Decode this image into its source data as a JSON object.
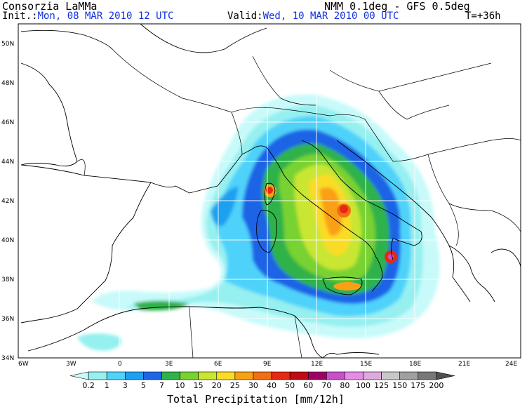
{
  "header": {
    "org": "Consorzia LaMMa",
    "model": "NMM 0.1deg - GFS 0.5deg",
    "init_label": "Init.:",
    "init_value": "Mon, 08 MAR 2010 12 UTC",
    "valid_label": "Valid:",
    "valid_value": "Wed, 10 MAR 2010 00 UTC",
    "forecast_step": "T=+36h"
  },
  "map": {
    "lat_labels": [
      "34N",
      "36N",
      "38N",
      "40N",
      "42N",
      "44N",
      "46N",
      "48N",
      "50N"
    ],
    "lon_labels": [
      "6W",
      "3W",
      "0",
      "3E",
      "6E",
      "9E",
      "12E",
      "15E",
      "18E",
      "21E",
      "24E"
    ]
  },
  "colorbar": {
    "title": "Total Precipitation [mm/12h]",
    "ticks": [
      "0.2",
      "1",
      "3",
      "5",
      "7",
      "10",
      "15",
      "20",
      "25",
      "30",
      "40",
      "50",
      "60",
      "70",
      "80",
      "100",
      "125",
      "150",
      "175",
      "200"
    ],
    "colors": [
      "#c8fafa",
      "#96f0f0",
      "#50d2fa",
      "#1ea0f0",
      "#1e64e6",
      "#2fb24a",
      "#78d232",
      "#c8e632",
      "#fadc28",
      "#faa014",
      "#f06e14",
      "#e62814",
      "#c00a14",
      "#a00064",
      "#c850c8",
      "#e68ce6",
      "#dcaadc",
      "#c8c8c8",
      "#a0a0a0",
      "#787878",
      "#505050"
    ]
  }
}
